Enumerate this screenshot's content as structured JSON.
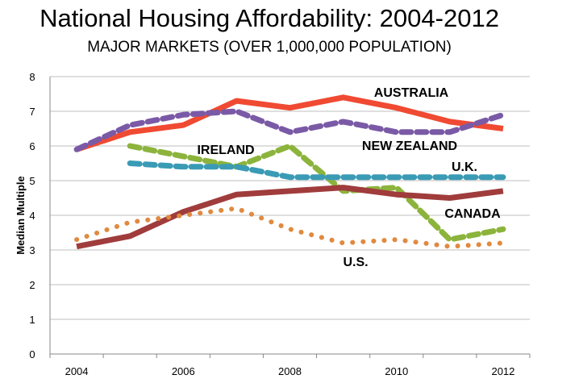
{
  "header": {
    "title": "National Housing Affordability: 2004-2012",
    "subtitle": "MAJOR MARKETS (OVER 1,000,000 POPULATION)"
  },
  "chart_data": {
    "type": "line",
    "title": "National Housing Affordability: 2004-2012",
    "subtitle": "MAJOR MARKETS (OVER 1,000,000 POPULATION)",
    "ylabel": "Median Multiple",
    "xlabel": "",
    "x": [
      2004,
      2005,
      2006,
      2007,
      2008,
      2009,
      2010,
      2011,
      2012
    ],
    "x_tick_labels": [
      "2004",
      "2006",
      "2008",
      "2010",
      "2012"
    ],
    "ylim": [
      0,
      8
    ],
    "y_ticks": [
      0,
      1,
      2,
      3,
      4,
      5,
      6,
      7,
      8
    ],
    "grid": "horizontal",
    "series": [
      {
        "name": "AUSTRALIA",
        "color": "#f04a32",
        "style": "solid",
        "values": [
          5.9,
          6.4,
          6.6,
          7.3,
          7.1,
          7.4,
          7.1,
          6.7,
          6.5
        ]
      },
      {
        "name": "NEW ZEALAND",
        "color": "#7a5aa6",
        "style": "dashed",
        "values": [
          5.9,
          6.6,
          6.9,
          7.0,
          6.4,
          6.7,
          6.4,
          6.4,
          6.9
        ]
      },
      {
        "name": "IRELAND",
        "color": "#8cb43c",
        "style": "dashed",
        "values": [
          null,
          6.0,
          5.7,
          5.4,
          6.0,
          4.7,
          4.8,
          3.3,
          3.6
        ]
      },
      {
        "name": "U.K.",
        "color": "#3a9bb5",
        "style": "dashed",
        "values": [
          null,
          5.5,
          5.4,
          5.4,
          5.1,
          5.1,
          5.1,
          5.1,
          5.1
        ]
      },
      {
        "name": "CANADA",
        "color": "#a03c3c",
        "style": "solid",
        "values": [
          3.1,
          3.4,
          4.1,
          4.6,
          4.7,
          4.8,
          4.6,
          4.5,
          4.7
        ]
      },
      {
        "name": "U.S.",
        "color": "#e08a40",
        "style": "dotted",
        "values": [
          3.3,
          3.8,
          4.0,
          4.2,
          3.6,
          3.2,
          3.3,
          3.1,
          3.2
        ]
      }
    ]
  }
}
